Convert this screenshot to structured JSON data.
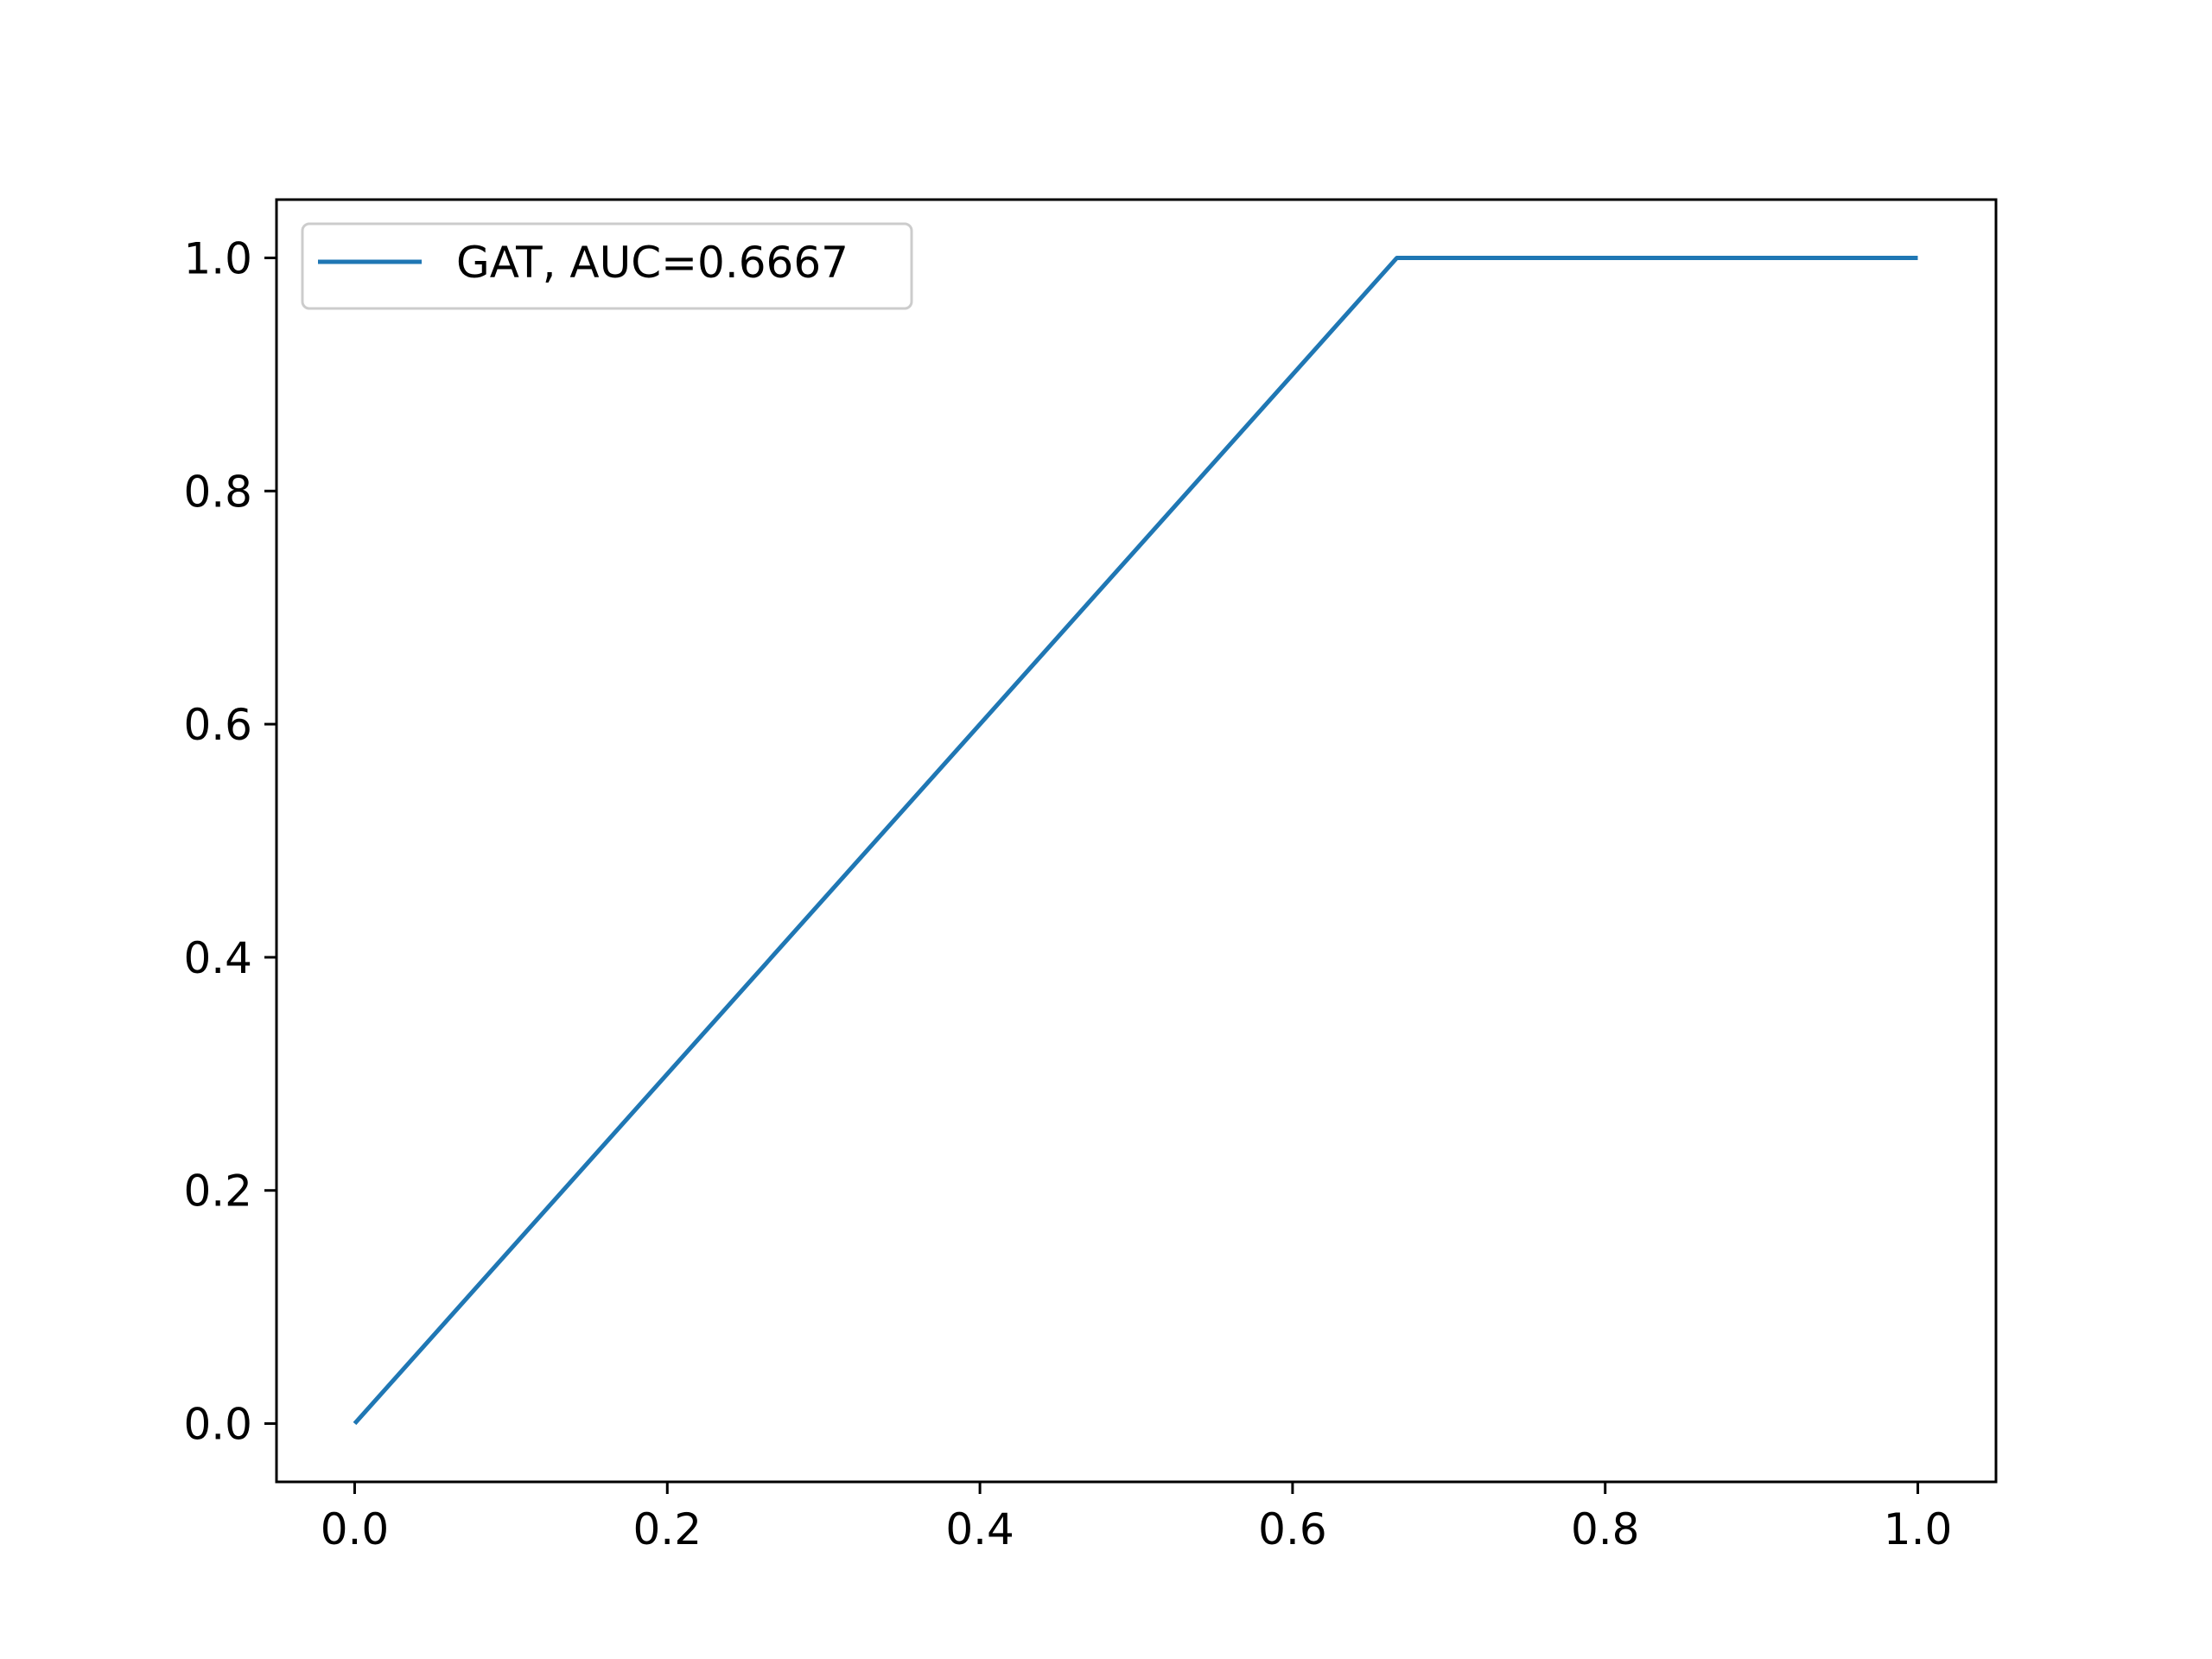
{
  "chart_data": {
    "type": "line",
    "title": "",
    "xlabel": "",
    "ylabel": "",
    "xlim": [
      -0.05,
      1.05
    ],
    "ylim": [
      -0.05,
      1.05
    ],
    "x_ticks": [
      "0.0",
      "0.2",
      "0.4",
      "0.6",
      "0.8",
      "1.0"
    ],
    "y_ticks": [
      "0.0",
      "0.2",
      "0.4",
      "0.6",
      "0.8",
      "1.0"
    ],
    "legend_position": "top-left",
    "grid": false,
    "series": [
      {
        "name": "GAT, AUC=0.6667",
        "color": "#1f77b4",
        "x": [
          0.0,
          0.6667,
          1.0
        ],
        "y": [
          0.0,
          1.0,
          1.0
        ]
      }
    ]
  }
}
